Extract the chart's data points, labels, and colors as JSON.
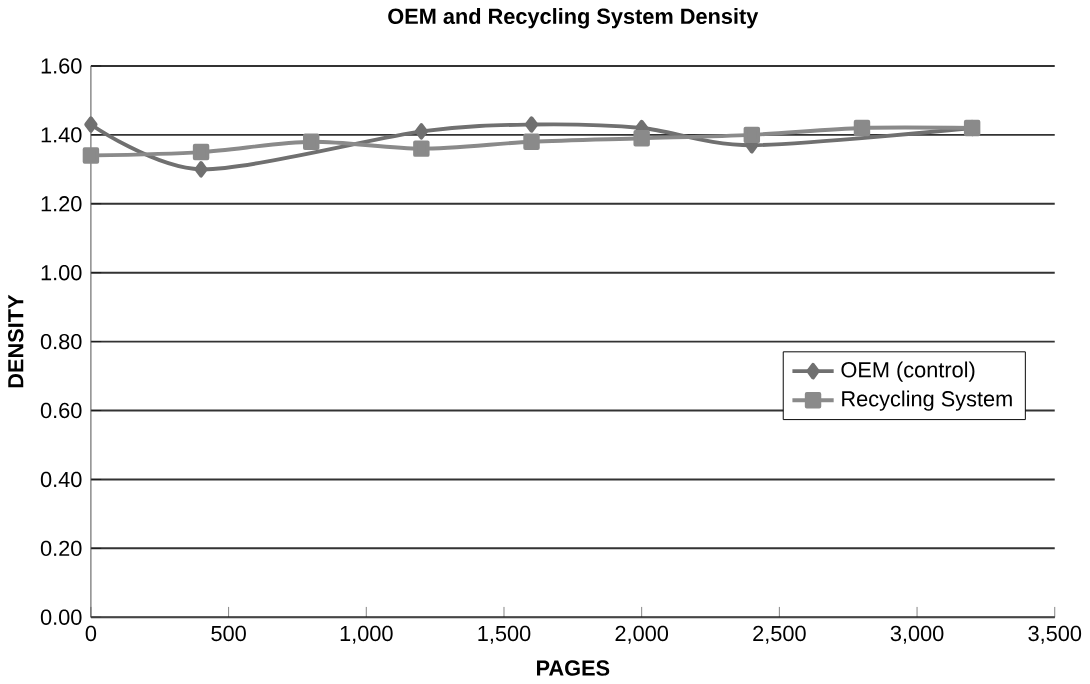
{
  "chart_data": {
    "type": "line",
    "title": "OEM and Recycling System Density",
    "xlabel": "PAGES",
    "ylabel": "DENSITY",
    "x": [
      0,
      400,
      800,
      1200,
      1600,
      2000,
      2400,
      2800,
      3200
    ],
    "series": [
      {
        "name": "OEM (control)",
        "color": "#707070",
        "marker": "diamond",
        "values": [
          1.43,
          1.3,
          null,
          1.41,
          1.43,
          1.42,
          1.37,
          null,
          1.42
        ]
      },
      {
        "name": "Recycling System",
        "color": "#8a8a8a",
        "marker": "square",
        "values": [
          1.34,
          1.35,
          1.38,
          1.36,
          1.38,
          1.39,
          1.4,
          1.42,
          1.42
        ]
      }
    ],
    "xlim": [
      0,
      3500
    ],
    "xticks": [
      0,
      500,
      {
        "value": 1000,
        "label": "1,000"
      },
      {
        "value": 1500,
        "label": "1,500"
      },
      {
        "value": 2000,
        "label": "2,000"
      },
      {
        "value": 2500,
        "label": "2,500"
      },
      {
        "value": 3000,
        "label": "3,000"
      },
      {
        "value": 3500,
        "label": "3,500"
      }
    ],
    "ylim": [
      0,
      1.6
    ],
    "yticks": [
      {
        "value": 0,
        "label": "0.00"
      },
      {
        "value": 0.2,
        "label": "0.20"
      },
      {
        "value": 0.4,
        "label": "0.40"
      },
      {
        "value": 0.6,
        "label": "0.60"
      },
      {
        "value": 0.8,
        "label": "0.80"
      },
      {
        "value": 1.0,
        "label": "1.00"
      },
      {
        "value": 1.2,
        "label": "1.20"
      },
      {
        "value": 1.4,
        "label": "1.40"
      },
      {
        "value": 1.6,
        "label": "1.60"
      }
    ],
    "grid": "y",
    "legend": "right",
    "line_style": "solid"
  }
}
